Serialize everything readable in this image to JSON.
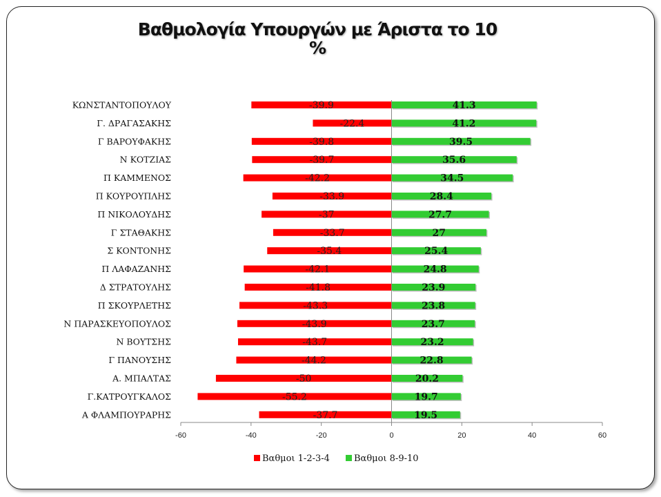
{
  "title": {
    "line1": "Βαθμολογία Υπουργών με Άριστα το 10",
    "line2": "%"
  },
  "chart_data": {
    "type": "bar",
    "orientation": "horizontal",
    "stacked_diverging": true,
    "categories": [
      "ΚΩΝΣΤΑΝΤΟΠΟΥΛΟΥ",
      "Γ.  ΔΡΑΓΑΣΑΚΗΣ",
      "Γ ΒΑΡΟΥΦΑΚΗΣ",
      "Ν ΚΟΤΖΙΑΣ",
      "Π ΚΑΜΜΕΝΟΣ",
      "Π ΚΟΥΡΟΥΠΛΗΣ",
      "Π ΝΙΚΟΛΟΥΔΗΣ",
      "Γ ΣΤΑΘΑΚΗΣ",
      "Σ ΚΟΝΤΟΝΗΣ",
      "Π ΛΑΦΑΖΑΝΗΣ",
      "Δ ΣΤΡΑΤΟΥΛΗΣ",
      "Π ΣΚΟΥΡΛΕΤΗΣ",
      "Ν ΠΑΡΑΣΚΕΥΟΠΟΥΛΟΣ",
      "Ν ΒΟΥΤΣΗΣ",
      "Γ ΠΑΝΟΥΣΗΣ",
      "Α. ΜΠΑΛΤΑΣ",
      "Γ.ΚΑΤΡΟΥΓΚΑΛΟΣ",
      "Α ΦΛΑΜΠΟΥΡΑΡΗΣ"
    ],
    "series": [
      {
        "name": "Βαθμοι 1-2-3-4",
        "color": "#ff0000",
        "values": [
          -39.9,
          -22.4,
          -39.8,
          -39.7,
          -42.2,
          -33.9,
          -37,
          -33.7,
          -35.4,
          -42.1,
          -41.8,
          -43.3,
          -43.9,
          -43.7,
          -44.2,
          -50,
          -55.2,
          -37.7
        ]
      },
      {
        "name": "Βαθμοι 8-9-10",
        "color": "#33cc33",
        "values": [
          41.3,
          41.2,
          39.5,
          35.6,
          34.5,
          28.4,
          27.7,
          27,
          25.4,
          24.8,
          23.9,
          23.8,
          23.7,
          23.2,
          22.8,
          20.2,
          19.7,
          19.5
        ]
      }
    ],
    "xlim": [
      -60,
      60
    ],
    "xticks": [
      -60,
      -40,
      -20,
      0,
      20,
      40,
      60
    ],
    "grid": false,
    "legend": "bottom"
  }
}
